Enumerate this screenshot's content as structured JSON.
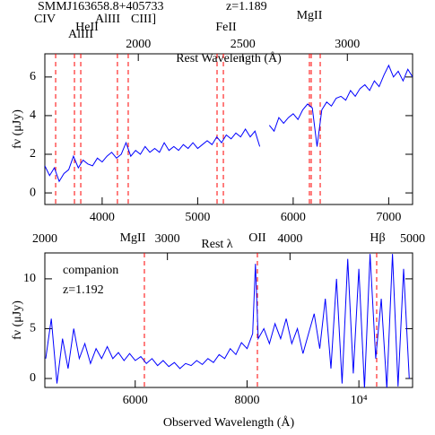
{
  "chart_data": [
    {
      "type": "line",
      "title": "SMMJ163658.8+405733",
      "subtitle": "z=1.189",
      "xlabel": "Rest Wavelength (Å)",
      "ylabel": "fν (μJy)",
      "color": "#0000ff",
      "x": [
        3400,
        3450,
        3500,
        3550,
        3600,
        3650,
        3700,
        3750,
        3800,
        3850,
        3900,
        3950,
        4000,
        4050,
        4100,
        4150,
        4200,
        4250,
        4300,
        4350,
        4400,
        4450,
        4500,
        4550,
        4600,
        4650,
        4700,
        4750,
        4800,
        4850,
        4900,
        4950,
        5000,
        5050,
        5100,
        5150,
        5200,
        5250,
        5300,
        5350,
        5400,
        5450,
        5500,
        5550,
        5600,
        5650,
        5700,
        5750,
        5800,
        5850,
        5900,
        5950,
        6000,
        6050,
        6100,
        6150,
        6200,
        6250,
        6300,
        6350,
        6400,
        6450,
        6500,
        6550,
        6600,
        6650,
        6700,
        6750,
        6800,
        6850,
        6900,
        6950,
        7000,
        7050,
        7100,
        7150,
        7200,
        7250
      ],
      "values": [
        1.4,
        0.9,
        1.3,
        0.6,
        1.0,
        1.2,
        1.9,
        1.3,
        1.7,
        1.5,
        1.4,
        1.8,
        1.6,
        1.9,
        2.1,
        1.8,
        2.0,
        2.6,
        1.9,
        2.2,
        2.0,
        2.4,
        2.1,
        2.3,
        2.1,
        2.6,
        2.2,
        2.4,
        2.2,
        2.5,
        2.3,
        2.6,
        2.3,
        2.5,
        2.7,
        2.5,
        2.9,
        2.6,
        3.0,
        2.8,
        3.1,
        2.9,
        3.3,
        2.9,
        3.2,
        2.4,
        null,
        3.5,
        3.2,
        3.9,
        3.6,
        3.9,
        4.1,
        3.8,
        4.3,
        4.6,
        4.4,
        2.4,
        4.3,
        4.7,
        4.5,
        4.9,
        5.0,
        4.8,
        5.3,
        5.0,
        5.4,
        5.6,
        5.3,
        5.8,
        5.5,
        6.1,
        6.6,
        6.0,
        6.3,
        5.8,
        6.4,
        6.0
      ],
      "xlim": [
        3400,
        7250
      ],
      "xticks": [
        4000,
        5000,
        6000,
        7000
      ],
      "ylim": [
        -0.6,
        7.2
      ],
      "yticks": [
        0,
        2,
        4,
        6
      ],
      "x2lim": [
        1553,
        3312
      ],
      "x2ticks": [
        2000,
        2500,
        3000
      ],
      "line_color": "#ff0000",
      "line_x": [
        3513,
        3710,
        3776,
        4160,
        4273,
        5203,
        5269,
        6170,
        6189,
        6283
      ],
      "line_labels": [
        "CIV",
        "HeII",
        "AlIII",
        "AlIII",
        "CIII]",
        "FeII",
        "MgII"
      ]
    },
    {
      "type": "line",
      "xlabel": "Observed Wavelength (Å)",
      "x2label": "Rest λ",
      "ylabel": "fν (μJy)",
      "color": "#0000ff",
      "annotations": [
        "companion",
        "z=1.192"
      ],
      "x": [
        4400,
        4500,
        4600,
        4700,
        4800,
        4900,
        5000,
        5100,
        5200,
        5300,
        5400,
        5500,
        5600,
        5700,
        5800,
        5900,
        6000,
        6100,
        6200,
        6300,
        6400,
        6500,
        6600,
        6700,
        6800,
        6900,
        7000,
        7100,
        7200,
        7300,
        7400,
        7500,
        7600,
        7700,
        7800,
        7900,
        8000,
        8100,
        8150,
        8200,
        8300,
        8400,
        8500,
        8600,
        8700,
        8800,
        8900,
        9000,
        9100,
        9200,
        9300,
        9400,
        9500,
        9600,
        9700,
        9800,
        9900,
        10000,
        10100,
        10200,
        10300,
        10400,
        10500,
        10600,
        10700,
        10800,
        10900
      ],
      "values": [
        2,
        6,
        -0.5,
        4,
        1,
        5,
        2,
        3.5,
        1.5,
        3,
        2,
        3.2,
        2,
        2.6,
        1.8,
        2.5,
        1.8,
        2.2,
        1.5,
        2.0,
        1.3,
        1.8,
        1.2,
        1.6,
        1.0,
        1.5,
        1.3,
        1.8,
        1.4,
        2.0,
        1.6,
        2.4,
        2.0,
        3.0,
        2.4,
        3.6,
        3.0,
        4.5,
        11.5,
        4.0,
        5.0,
        3.5,
        5.5,
        4.0,
        6.0,
        3.5,
        5.0,
        2.5,
        4.5,
        6.5,
        3.0,
        8.0,
        1.0,
        10.0,
        -0.5,
        12.0,
        0.5,
        11.0,
        -1.0,
        12.5,
        2.0,
        8.0,
        -1.0,
        12.5,
        -0.8,
        11.0,
        0.0
      ],
      "xlim": [
        4384,
        10960
      ],
      "xticks": [
        6000,
        8000,
        {
          "value": 10000,
          "label": "10⁴"
        }
      ],
      "ylim": [
        -0.9,
        12.6
      ],
      "yticks": [
        0,
        5,
        10
      ],
      "x2lim": [
        2000,
        5000
      ],
      "x2ticks": [
        2000,
        3000,
        4000,
        5000
      ],
      "line_color": "#ff0000",
      "line_x": [
        6164,
        8185,
        10318
      ],
      "line_labels": [
        "MgII",
        "OII",
        "Hβ"
      ]
    }
  ]
}
